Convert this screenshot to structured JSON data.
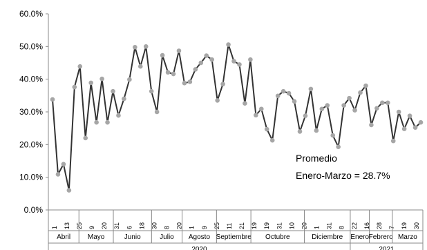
{
  "chart_data": {
    "type": "line",
    "title": "",
    "xlabel": "",
    "ylabel": "",
    "ylim": [
      0,
      60
    ],
    "y_ticks": [
      "0.0%",
      "10.0%",
      "20.0%",
      "30.0%",
      "40.0%",
      "50.0%",
      "60.0%"
    ],
    "grid": false,
    "legend": "none",
    "x_tick_labels": [
      "1",
      "13",
      "25",
      "9",
      "20",
      "31",
      "6",
      "18",
      "30",
      "8",
      "20",
      "1",
      "9",
      "25",
      "11",
      "21",
      "19",
      "19",
      "31",
      "10",
      "20",
      "1",
      "31",
      "8",
      "22",
      "16",
      "28",
      "7",
      "19",
      "30"
    ],
    "months": [
      {
        "label": "Abril",
        "span": [
          0,
          8
        ]
      },
      {
        "label": "Mayo",
        "span": [
          8,
          17
        ]
      },
      {
        "label": "Junio",
        "span": [
          17,
          27
        ]
      },
      {
        "label": "Julio",
        "span": [
          27,
          35
        ]
      },
      {
        "label": "Agosto",
        "span": [
          35,
          44
        ]
      },
      {
        "label": "Septiembre",
        "span": [
          44,
          53
        ]
      },
      {
        "label": "Octubre",
        "span": [
          53,
          67
        ]
      },
      {
        "label": "Diciembre",
        "span": [
          67,
          79
        ]
      },
      {
        "label": "Enero",
        "span": [
          79,
          84
        ]
      },
      {
        "label": "Febrero",
        "span": [
          84,
          90
        ]
      },
      {
        "label": "Marzo",
        "span": [
          90,
          98
        ]
      }
    ],
    "years": [
      {
        "label": "2020",
        "span": [
          0,
          79
        ]
      },
      {
        "label": "2021",
        "span": [
          79,
          98
        ]
      }
    ],
    "annotation": {
      "line1": "Promedio",
      "line2": "Enero-Marzo = 28.7%"
    },
    "line_color": "#333333",
    "marker_color": "#a6a6a6",
    "series": [
      {
        "values": [
          33.8,
          10.9,
          14.0,
          6.0,
          37.6,
          43.9,
          22.0,
          38.9,
          26.8,
          40.1,
          26.8,
          36.3,
          28.9,
          34.0,
          39.9,
          49.8,
          43.9,
          50.0,
          36.3,
          30.0,
          47.3,
          42.1,
          41.6,
          48.7,
          38.8,
          39.2,
          43.0,
          45.0,
          47.2,
          46.0,
          33.5,
          38.5,
          50.6,
          45.5,
          44.5,
          32.6,
          46.0,
          29.0,
          30.9,
          24.7,
          21.3,
          34.9,
          36.3,
          35.7,
          33.2,
          24.0,
          28.8,
          37.0,
          24.3,
          30.9,
          32.0,
          22.8,
          19.3,
          32.0,
          34.2,
          30.5,
          35.9,
          38.0,
          26.0,
          31.1,
          32.8,
          32.8,
          21.1,
          30.0,
          24.8,
          28.8,
          25.2,
          26.8
        ]
      }
    ]
  }
}
